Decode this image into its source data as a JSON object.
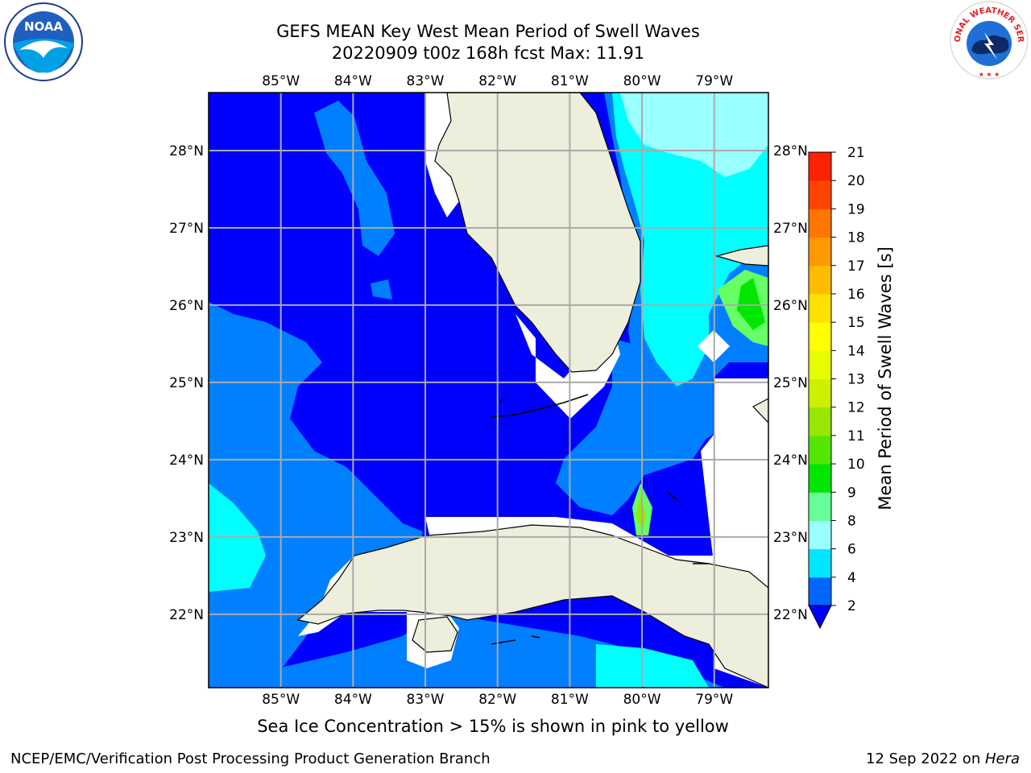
{
  "title_line1": "GEFS MEAN Key West Mean Period of Swell Waves",
  "title_line2": "20220909 t00z 168h fcst   Max: 11.91",
  "map": {
    "lon_labels": [
      "85°W",
      "84°W",
      "83°W",
      "82°W",
      "81°W",
      "80°W",
      "79°W"
    ],
    "lat_labels": [
      "28°N",
      "27°N",
      "26°N",
      "25°N",
      "24°N",
      "23°N",
      "22°N"
    ],
    "lon_range": [
      -86,
      -78.25
    ],
    "lat_range": [
      21.05,
      28.75
    ]
  },
  "colorbar": {
    "label": "Mean Period of Swell Waves [s]",
    "ticks": [
      "21",
      "20",
      "19",
      "18",
      "17",
      "16",
      "15",
      "14",
      "13",
      "12",
      "11",
      "10",
      "9",
      "8",
      "6",
      "4",
      "2"
    ],
    "colors": [
      "#0066ff",
      "#00e5ff",
      "#99ffff",
      "#66ff99",
      "#00e600",
      "#55e600",
      "#99e600",
      "#ccf000",
      "#e6ff00",
      "#ffff00",
      "#ffe000",
      "#ffbb00",
      "#ff9900",
      "#ff7700",
      "#ff4400",
      "#ff2200",
      "#ff0000"
    ],
    "extend_color": "#0000ff"
  },
  "palette": {
    "ocean_deep": "#0000ff",
    "ocean_mid": "#0080ff",
    "ocean_cyan": "#00ffff",
    "ocean_light": "#99ffff",
    "ocean_green": "#66ff66",
    "land": "#eeeedd",
    "grid": "#aaaaaa"
  },
  "logos": {
    "noaa_text": "NOAA",
    "nws_text": "NATIONAL WEATHER SERVICE"
  },
  "subnote": "Sea Ice Concentration > 15% is shown in pink to yellow",
  "footer_left": "NCEP/EMC/Verification Post Processing Product Generation Branch",
  "footer_date": "12 Sep 2022 on ",
  "footer_machine": "Hera"
}
